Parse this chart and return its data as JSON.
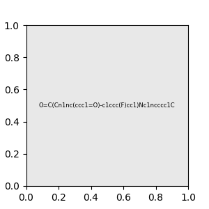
{
  "smiles": "O=C(Cn1nc(ccc1=O)-c1ccc(F)cc1)Nc1ncccc1C",
  "image_size": 300,
  "background_color": "#e8e8e8",
  "atom_colors": {
    "N": "#0000ff",
    "O": "#ff0000",
    "F": "#ff00ff"
  }
}
